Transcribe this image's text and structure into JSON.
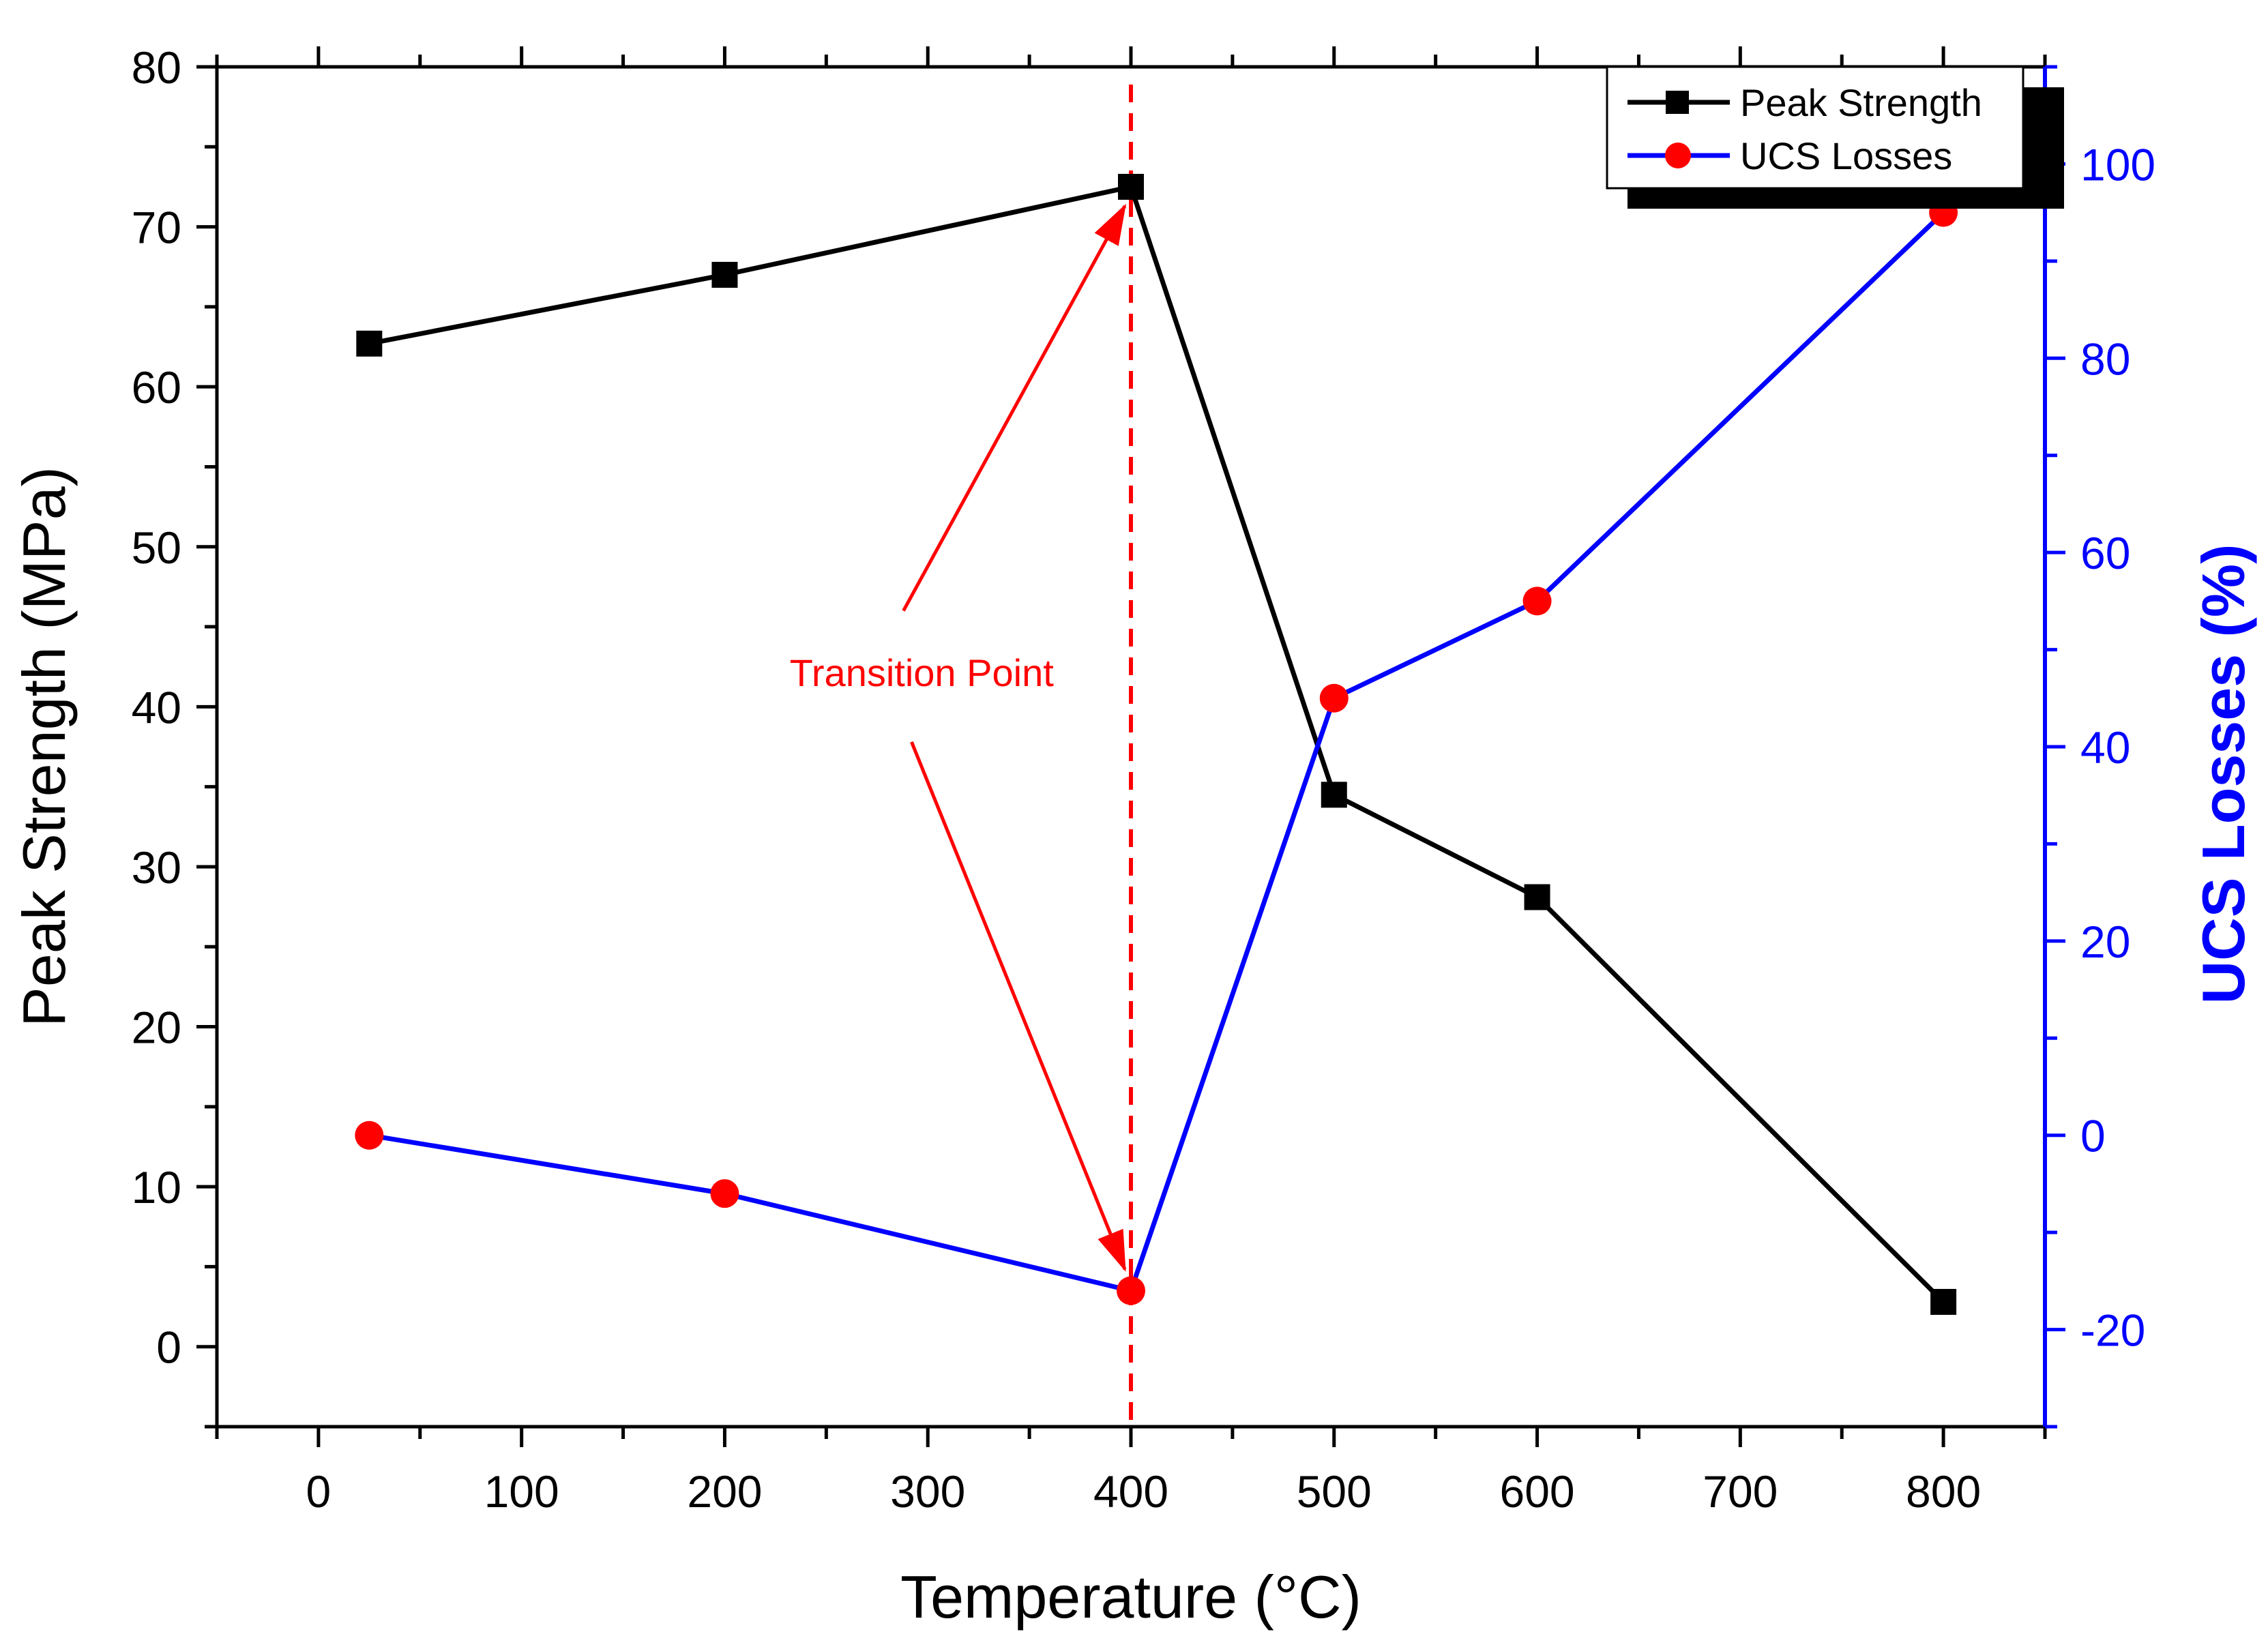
{
  "chart_data": {
    "type": "line",
    "title": "",
    "xlabel": "Temperature (°C)",
    "ylabel": "Peak Strength (MPa)",
    "y2label": "UCS Losses (%)",
    "xlim": [
      -50,
      850
    ],
    "ylim": [
      -5,
      80
    ],
    "y2lim": [
      -30,
      110
    ],
    "xticks": [
      0,
      100,
      200,
      300,
      400,
      500,
      600,
      700,
      800
    ],
    "yticks": [
      0,
      10,
      20,
      30,
      40,
      50,
      60,
      70,
      80
    ],
    "y2ticks": [
      -20,
      0,
      20,
      40,
      60,
      80,
      100
    ],
    "series": [
      {
        "name": "Peak Strength",
        "axis": "left",
        "color": "#000000",
        "marker": "square",
        "x": [
          25,
          200,
          400,
          500,
          600,
          800
        ],
        "values": [
          62.7,
          67.0,
          72.5,
          34.5,
          28.1,
          2.8
        ]
      },
      {
        "name": "UCS Losses",
        "axis": "right",
        "color": "#0000ff",
        "marker_color": "#ff0000",
        "marker": "circle",
        "x": [
          25,
          200,
          400,
          500,
          600,
          800
        ],
        "values": [
          0,
          -6,
          -16,
          45,
          55,
          95
        ]
      }
    ],
    "reference_line": {
      "x": 400,
      "color": "#ff0000",
      "style": "dashed"
    },
    "annotation": {
      "text": "Transition Point",
      "color": "#ff0000"
    },
    "legend": {
      "position": "top-right"
    }
  }
}
